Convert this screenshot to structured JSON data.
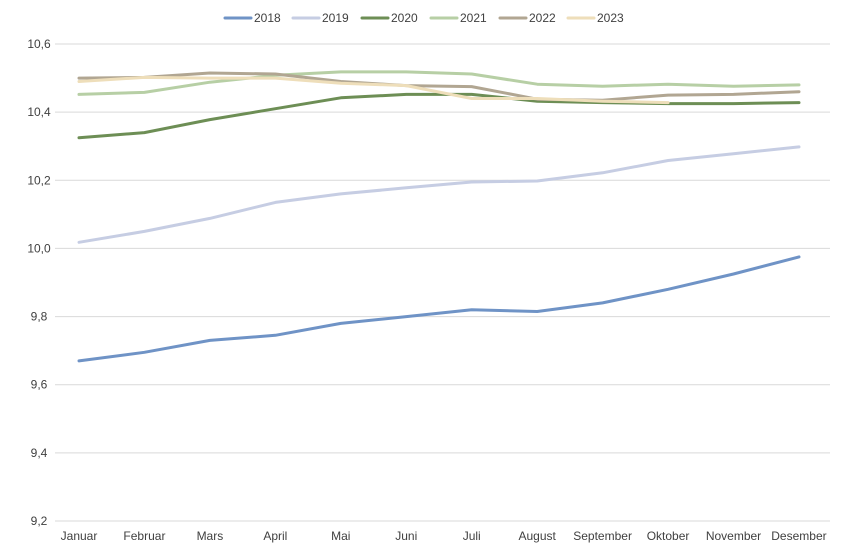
{
  "chart_data": {
    "type": "line",
    "title": "",
    "xlabel": "",
    "ylabel": "",
    "categories": [
      "Januar",
      "Februar",
      "Mars",
      "April",
      "Mai",
      "Juni",
      "Juli",
      "August",
      "September",
      "Oktober",
      "November",
      "Desember"
    ],
    "ylim": [
      9.2,
      10.6
    ],
    "yticks": [
      "9,2",
      "9,4",
      "9,6",
      "9,8",
      "10,0",
      "10,2",
      "10,4",
      "10,6"
    ],
    "grid": true,
    "legend_position": "top",
    "series": [
      {
        "name": "2018",
        "color": "#6f93c6",
        "values": [
          9.67,
          9.695,
          9.73,
          9.745,
          9.78,
          9.8,
          9.82,
          9.815,
          9.84,
          9.88,
          9.925,
          9.975
        ]
      },
      {
        "name": "2019",
        "color": "#c6cde3",
        "values": [
          10.018,
          10.05,
          10.088,
          10.135,
          10.16,
          10.178,
          10.195,
          10.198,
          10.222,
          10.258,
          10.278,
          10.298
        ]
      },
      {
        "name": "2020",
        "color": "#6d8e55",
        "values": [
          10.325,
          10.34,
          10.378,
          10.41,
          10.442,
          10.452,
          10.452,
          10.432,
          10.428,
          10.425,
          10.425,
          10.428
        ]
      },
      {
        "name": "2021",
        "color": "#b7cfa5",
        "values": [
          10.452,
          10.458,
          10.488,
          10.508,
          10.518,
          10.518,
          10.512,
          10.482,
          10.476,
          10.482,
          10.476,
          10.48
        ]
      },
      {
        "name": "2022",
        "color": "#b1a692",
        "values": [
          10.5,
          10.502,
          10.515,
          10.512,
          10.49,
          10.478,
          10.475,
          10.438,
          10.435,
          10.45,
          10.452,
          10.46
        ]
      },
      {
        "name": "2023",
        "color": "#eedeba",
        "values": [
          10.49,
          10.502,
          10.5,
          10.5,
          10.485,
          10.478,
          10.44,
          10.44,
          10.432,
          10.428,
          null,
          null
        ]
      }
    ]
  }
}
